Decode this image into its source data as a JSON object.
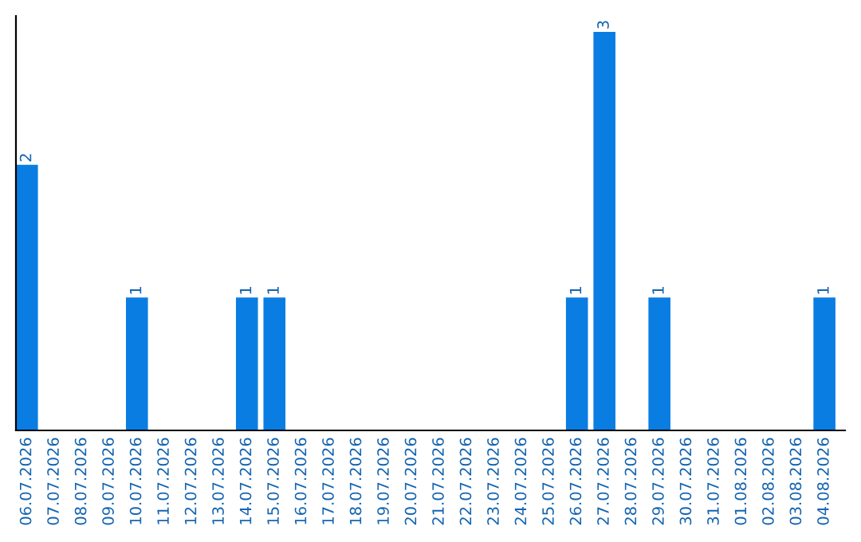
{
  "chart_data": {
    "type": "bar",
    "categories": [
      "06.07.2026",
      "07.07.2026",
      "08.07.2026",
      "09.07.2026",
      "10.07.2026",
      "11.07.2026",
      "12.07.2026",
      "13.07.2026",
      "14.07.2026",
      "15.07.2026",
      "16.07.2026",
      "17.07.2026",
      "18.07.2026",
      "19.07.2026",
      "20.07.2026",
      "21.07.2026",
      "22.07.2026",
      "23.07.2026",
      "24.07.2026",
      "25.07.2026",
      "26.07.2026",
      "27.07.2026",
      "28.07.2026",
      "29.07.2026",
      "30.07.2026",
      "31.07.2026",
      "01.08.2026",
      "02.08.2026",
      "03.08.2026",
      "04.08.2026"
    ],
    "values": [
      2,
      0,
      0,
      0,
      1,
      0,
      0,
      0,
      1,
      1,
      0,
      0,
      0,
      0,
      0,
      0,
      0,
      0,
      0,
      0,
      1,
      3,
      0,
      1,
      0,
      0,
      0,
      0,
      0,
      1
    ],
    "color": "#0a7de3",
    "value_labels": [
      "2",
      null,
      null,
      null,
      "1",
      null,
      null,
      null,
      "1",
      "1",
      null,
      null,
      null,
      null,
      null,
      null,
      null,
      null,
      null,
      null,
      "1",
      "3",
      null,
      "1",
      null,
      null,
      null,
      null,
      null,
      "1"
    ],
    "tick_labels": "x",
    "grid": false,
    "legend": false
  }
}
